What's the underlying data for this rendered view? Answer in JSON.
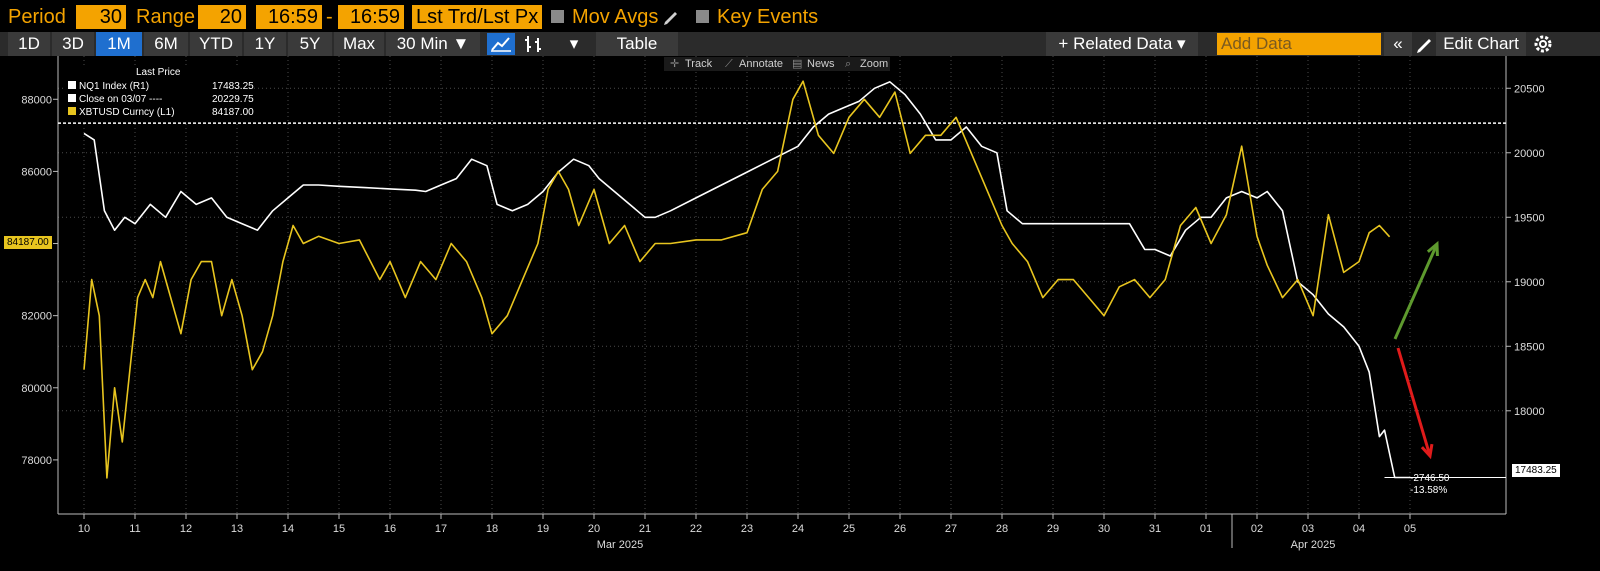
{
  "controls": {
    "period_label": "Period",
    "period_value": "30",
    "range_label": "Range",
    "range_value": "20",
    "time_from": "16:59",
    "range_dash": "-",
    "time_to": "16:59",
    "field": "Lst Trd/Lst Px",
    "mov_avgs": "Mov Avgs",
    "key_events": "Key Events"
  },
  "toolbar": {
    "buttons": [
      "1D",
      "3D",
      "1M",
      "6M",
      "YTD",
      "1Y",
      "5Y",
      "Max",
      "30 Min ▼"
    ],
    "selected": "1M",
    "table": "Table",
    "dropdown": "▾",
    "related_data": "+ Related Data ▾",
    "add_data_placeholder": "Add Data",
    "collapse": "«",
    "edit_chart": "Edit Chart"
  },
  "chart_tools": {
    "track": "Track",
    "annotate": "Annotate",
    "news": "News",
    "zoom": "Zoom"
  },
  "colors": {
    "nq1": "#ffffff",
    "xbt": "#e8c51f",
    "up_arrow": "#5e9a2e",
    "down_arrow": "#e01b1b",
    "grid": "#4a4a4a"
  },
  "legend": {
    "title": "Last Price",
    "rows": [
      {
        "name": "NQ1 Index  (R1)",
        "value": "17483.25"
      },
      {
        "name": "Close on 03/07 ----",
        "value": "20229.75"
      },
      {
        "name": "XBTUSD Curncy  (L1)",
        "value": "84187.00"
      }
    ]
  },
  "last_value_tags": {
    "left": "84187.00",
    "right": "17483.25"
  },
  "annotation": {
    "change": "-2746.50",
    "pct": "-13.58%"
  },
  "chart_data": {
    "type": "line",
    "x_ticks": [
      "10",
      "11",
      "12",
      "13",
      "14",
      "15",
      "16",
      "17",
      "18",
      "19",
      "20",
      "21",
      "22",
      "23",
      "24",
      "25",
      "26",
      "27",
      "28",
      "29",
      "30",
      "31",
      "01",
      "02",
      "03",
      "04",
      "05"
    ],
    "x_month_labels": [
      "Mar 2025",
      "Apr 2025"
    ],
    "left_axis": {
      "ticks": [
        78000,
        80000,
        82000,
        84000,
        86000,
        88000
      ],
      "range": [
        76500,
        89200
      ]
    },
    "right_axis": {
      "ticks": [
        18000,
        18500,
        19000,
        19500,
        20000,
        20500
      ],
      "range": [
        17200,
        20750
      ]
    },
    "reference_line": {
      "label": "Close on 03/07",
      "value": 20229.75,
      "axis": "right"
    },
    "series": [
      {
        "name": "NQ1 Index (R1)",
        "axis": "right",
        "x": [
          10.0,
          10.2,
          10.4,
          10.6,
          10.8,
          11.0,
          11.3,
          11.6,
          11.9,
          12.2,
          12.5,
          12.8,
          13.1,
          13.4,
          13.7,
          14.0,
          14.3,
          14.6,
          15.0,
          15.5,
          16.0,
          16.5,
          16.7,
          17.0,
          17.3,
          17.6,
          17.9,
          18.1,
          18.4,
          18.7,
          19.0,
          19.3,
          19.6,
          19.9,
          20.1,
          20.4,
          20.7,
          21.0,
          21.2,
          21.5,
          22.0,
          23.0,
          24.0,
          24.3,
          24.6,
          24.9,
          25.2,
          25.5,
          25.8,
          26.1,
          26.4,
          26.7,
          27.0,
          27.3,
          27.6,
          27.9,
          28.1,
          28.4,
          28.7,
          29.0,
          29.5,
          30.0,
          30.5,
          30.8,
          31.0,
          31.3,
          31.6,
          31.9,
          32.1,
          32.4,
          32.7,
          33.0,
          33.2,
          33.5,
          33.8,
          34.1,
          34.4,
          34.7,
          35.0,
          35.2,
          35.4,
          35.5,
          35.7,
          36.0
        ],
        "values": [
          20150,
          20100,
          19550,
          19400,
          19500,
          19450,
          19600,
          19500,
          19700,
          19600,
          19650,
          19500,
          19450,
          19400,
          19550,
          19650,
          19750,
          19750,
          19740,
          19730,
          19720,
          19710,
          19700,
          19750,
          19800,
          19950,
          19900,
          19600,
          19550,
          19600,
          19700,
          19850,
          19950,
          19900,
          19800,
          19700,
          19600,
          19500,
          19500,
          19550,
          19650,
          19850,
          20050,
          20200,
          20300,
          20350,
          20400,
          20500,
          20550,
          20450,
          20300,
          20100,
          20100,
          20200,
          20050,
          20000,
          19550,
          19450,
          19450,
          19450,
          19450,
          19450,
          19450,
          19250,
          19250,
          19200,
          19400,
          19500,
          19500,
          19650,
          19700,
          19650,
          19700,
          19550,
          19000,
          18900,
          18750,
          18650,
          18500,
          18300,
          17800,
          17850,
          17483,
          17483
        ]
      },
      {
        "name": "XBTUSD Curncy (L1)",
        "axis": "left",
        "x": [
          10.0,
          10.15,
          10.3,
          10.45,
          10.6,
          10.75,
          10.9,
          11.05,
          11.2,
          11.35,
          11.5,
          11.7,
          11.9,
          12.1,
          12.3,
          12.5,
          12.7,
          12.9,
          13.1,
          13.3,
          13.5,
          13.7,
          13.9,
          14.1,
          14.3,
          14.6,
          15.0,
          15.4,
          15.8,
          16.0,
          16.3,
          16.6,
          16.9,
          17.2,
          17.5,
          17.8,
          18.0,
          18.3,
          18.6,
          18.9,
          19.1,
          19.3,
          19.5,
          19.7,
          20.0,
          20.3,
          20.6,
          20.9,
          21.2,
          21.5,
          22.0,
          22.5,
          23.0,
          23.3,
          23.6,
          23.9,
          24.1,
          24.4,
          24.7,
          25.0,
          25.3,
          25.6,
          25.9,
          26.2,
          26.5,
          26.8,
          27.1,
          27.4,
          27.7,
          28.0,
          28.2,
          28.5,
          28.8,
          29.1,
          29.4,
          29.7,
          30.0,
          30.3,
          30.6,
          30.9,
          31.2,
          31.5,
          31.8,
          32.1,
          32.4,
          32.7,
          33.0,
          33.2,
          33.5,
          33.8,
          34.1,
          34.4,
          34.7,
          35.0,
          35.2,
          35.4,
          35.6
        ],
        "values": [
          80500,
          83000,
          82000,
          77500,
          80000,
          78500,
          80500,
          82500,
          83000,
          82500,
          83500,
          82500,
          81500,
          83000,
          83500,
          83500,
          82000,
          83000,
          82000,
          80500,
          81000,
          82000,
          83500,
          84500,
          84000,
          84200,
          84000,
          84100,
          83000,
          83500,
          82500,
          83500,
          83000,
          84000,
          83500,
          82500,
          81500,
          82000,
          83000,
          84000,
          85500,
          86000,
          85500,
          84500,
          85500,
          84000,
          84500,
          83500,
          84000,
          84000,
          84100,
          84100,
          84300,
          85500,
          86000,
          88000,
          88500,
          87000,
          86500,
          87500,
          88000,
          87500,
          88200,
          86500,
          87000,
          87000,
          87500,
          86500,
          85500,
          84500,
          84000,
          83500,
          82500,
          83000,
          83000,
          82500,
          82000,
          82800,
          83000,
          82500,
          83000,
          84500,
          85000,
          84000,
          84800,
          86700,
          84200,
          83400,
          82500,
          83000,
          82000,
          84800,
          83200,
          83500,
          84300,
          84500,
          84187
        ]
      }
    ]
  }
}
